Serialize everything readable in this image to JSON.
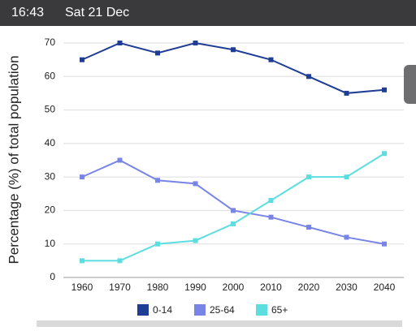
{
  "status_bar": {
    "time": "16:43",
    "date": "Sat 21 Dec"
  },
  "chart_data": {
    "type": "line",
    "y_label": "Percentage (%) of total population",
    "categories": [
      "1960",
      "1970",
      "1980",
      "1990",
      "2000",
      "2010",
      "2020",
      "2030",
      "2040"
    ],
    "series": [
      {
        "name": "0-14",
        "color": "#1f3d94",
        "values": [
          65,
          70,
          67,
          70,
          68,
          65,
          60,
          55,
          56
        ]
      },
      {
        "name": "25-64",
        "color": "#7884e6",
        "values": [
          30,
          35,
          29,
          28,
          20,
          18,
          15,
          12,
          10
        ]
      },
      {
        "name": "65+",
        "color": "#5cdde0",
        "values": [
          5,
          5,
          10,
          11,
          16,
          23,
          30,
          30,
          37
        ]
      }
    ],
    "ylim": [
      0,
      70
    ],
    "yticks": [
      0,
      10,
      20,
      30,
      40,
      50,
      60,
      70
    ],
    "grid": true,
    "legend": "bottom"
  }
}
